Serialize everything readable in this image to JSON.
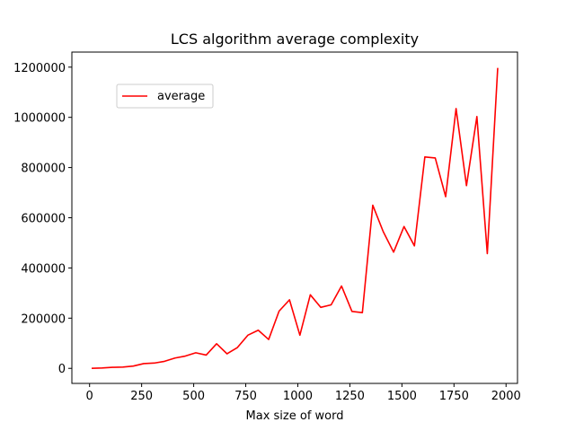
{
  "chart_data": {
    "type": "line",
    "title": "LCS algorithm average complexity",
    "xlabel": "Max size of word",
    "ylabel": "",
    "xlim": [
      -85,
      2055
    ],
    "ylim": [
      -60000,
      1260000
    ],
    "x_ticks": [
      0,
      250,
      500,
      750,
      1000,
      1250,
      1500,
      1750,
      2000
    ],
    "y_ticks": [
      0,
      200000,
      400000,
      600000,
      800000,
      1000000,
      1200000
    ],
    "legend_position": "upper-left",
    "grid": false,
    "series": [
      {
        "name": "average",
        "color": "#ff0000",
        "x": [
          10,
          60,
          110,
          160,
          210,
          260,
          310,
          360,
          410,
          460,
          510,
          560,
          610,
          660,
          710,
          760,
          810,
          860,
          910,
          960,
          1010,
          1060,
          1110,
          1160,
          1210,
          1260,
          1310,
          1360,
          1410,
          1460,
          1510,
          1560,
          1610,
          1660,
          1710,
          1760,
          1810,
          1860,
          1910,
          1960
        ],
        "y": [
          0,
          1500,
          4000,
          5000,
          9000,
          19000,
          21000,
          28000,
          41000,
          49000,
          62000,
          53000,
          98000,
          58000,
          83000,
          132000,
          152000,
          115000,
          228000,
          273000,
          132000,
          293000,
          243000,
          253000,
          328000,
          227000,
          222000,
          650000,
          545000,
          463000,
          565000,
          488000,
          842000,
          838000,
          684000,
          1035000,
          728000,
          1003000,
          457000,
          1197000
        ]
      }
    ]
  }
}
